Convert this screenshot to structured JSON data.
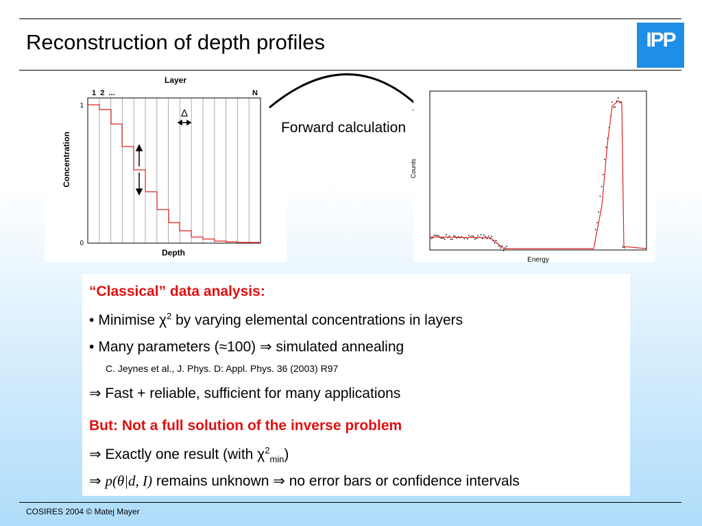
{
  "header": {
    "title": "Reconstruction of depth profiles",
    "logo": "IPP"
  },
  "left_figure": {
    "top_label": "Layer",
    "layer_first": "1  2  ...",
    "layer_last": "N",
    "delta": "Δ",
    "y_label": "Concentration",
    "y_top": "1",
    "y_bottom": "0",
    "x_label": "Depth"
  },
  "arrow_label": "Forward calculation",
  "right_figure": {
    "y_label": "Counts",
    "x_label": "Energy"
  },
  "body": {
    "heading1": "“Classical” data analysis:",
    "line1": {
      "pre": "Minimise χ",
      "sup": "2",
      "post": " by varying elemental concentrations in layers"
    },
    "line2": "Many parameters (≈100) ⇒ simulated annealing",
    "reference": "C. Jeynes et al., J. Phys. D: Appl. Phys. 36 (2003) R97",
    "line3": "⇒ Fast + reliable, sufficient for many applications",
    "heading2": "But: Not a full solution of the inverse problem",
    "line4": {
      "pre": "⇒ Exactly one result (with χ",
      "sup": "2",
      "sub": "min",
      "post": ")"
    },
    "line5": {
      "pre": "⇒ ",
      "italic": "p(θ|d, I)",
      "post": " remains unknown ⇒ no error bars or confidence intervals"
    }
  },
  "footer": "COSIRES 2004 © Matej Mayer"
}
